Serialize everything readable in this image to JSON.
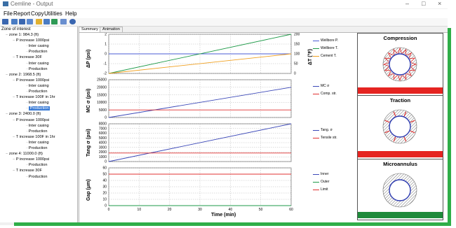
{
  "window": {
    "title": "Cemline - Output",
    "minimize": "–",
    "maximize": "□",
    "close": "×"
  },
  "menu": [
    "File",
    "Report",
    "Copy",
    "Utilities",
    "Help"
  ],
  "toolbar": {
    "icons": [
      "open-file-icon",
      "export-icon",
      "copy-icon",
      "print-icon",
      "grid-icon",
      "table-icon",
      "chart-icon",
      "edit-icon",
      "refresh-icon"
    ]
  },
  "tree": {
    "title": "Zone of interest",
    "nodes": [
      {
        "label": "zone 1: 984.3 (ft)",
        "level": 0
      },
      {
        "label": "P increase 1000psi",
        "level": 1
      },
      {
        "label": "Inter casing",
        "level": 2
      },
      {
        "label": "Production",
        "level": 2
      },
      {
        "label": "T increase 30F",
        "level": 1
      },
      {
        "label": "Inter casing",
        "level": 2
      },
      {
        "label": "Production",
        "level": 2
      },
      {
        "label": "zone 2: 1968.5 (ft)",
        "level": 0
      },
      {
        "label": "P increase 1000psi",
        "level": 1
      },
      {
        "label": "Inter casing",
        "level": 2
      },
      {
        "label": "Production",
        "level": 2
      },
      {
        "label": "T increase 100F in 1hr",
        "level": 1
      },
      {
        "label": "Inter casing",
        "level": 2
      },
      {
        "label": "Production",
        "level": 2,
        "selected": true
      },
      {
        "label": "zone 3: 2400.0 (ft)",
        "level": 0
      },
      {
        "label": "P increase 1000psi",
        "level": 1
      },
      {
        "label": "Inter casing",
        "level": 2
      },
      {
        "label": "Production",
        "level": 2
      },
      {
        "label": "T increase 100F in 1hr",
        "level": 1
      },
      {
        "label": "Inter casing",
        "level": 2
      },
      {
        "label": "Production",
        "level": 2
      },
      {
        "label": "zone 4: 11000.0 (ft)",
        "level": 0
      },
      {
        "label": "P increase 1000psi",
        "level": 1
      },
      {
        "label": "Production",
        "level": 2
      },
      {
        "label": "T increase 30F",
        "level": 1
      },
      {
        "label": "Production",
        "level": 2
      }
    ]
  },
  "tabs": [
    {
      "label": "Summary",
      "active": true
    },
    {
      "label": "Animation",
      "active": false
    }
  ],
  "xlabel": "Time  (min)",
  "chart_data": [
    {
      "type": "line",
      "ylabel": "ΔP  (psi)",
      "y2label": "ΔT  (°F)",
      "x": [
        0,
        60
      ],
      "xlim": [
        0,
        60
      ],
      "xticks": [
        0,
        10,
        20,
        30,
        40,
        50,
        60
      ],
      "ylim": [
        -2,
        2
      ],
      "yticks": [
        -2,
        -1,
        0,
        1,
        2
      ],
      "y2lim": [
        0,
        200
      ],
      "y2ticks": [
        0,
        50,
        100,
        150,
        200
      ],
      "series": [
        {
          "name": "Wellbore P.",
          "color": "#4a5bd6",
          "axis": "left",
          "values": [
            0,
            0
          ]
        },
        {
          "name": "Wellbore T.",
          "color": "#1e9a48",
          "axis": "right",
          "values": [
            0,
            200
          ]
        },
        {
          "name": "Cement T.",
          "color": "#f0a020",
          "axis": "right",
          "values": [
            0,
            100
          ]
        }
      ]
    },
    {
      "type": "line",
      "ylabel": "MC σ  (psi)",
      "x": [
        0,
        60
      ],
      "xlim": [
        0,
        60
      ],
      "xticks": [
        0,
        10,
        20,
        30,
        40,
        50,
        60
      ],
      "ylim": [
        0,
        25000
      ],
      "yticks": [
        0,
        5000,
        10000,
        15000,
        20000,
        25000
      ],
      "series": [
        {
          "name": "MC σ",
          "color": "#3b48b8",
          "values": [
            0,
            20000
          ]
        },
        {
          "name": "Comp. str.",
          "color": "#e03030",
          "values": [
            5000,
            5000
          ]
        }
      ]
    },
    {
      "type": "line",
      "ylabel": "Tang σ  (psi)",
      "x": [
        0,
        60
      ],
      "xlim": [
        0,
        60
      ],
      "xticks": [
        0,
        10,
        20,
        30,
        40,
        50,
        60
      ],
      "ylim": [
        0,
        8000
      ],
      "yticks": [
        0,
        1000,
        2000,
        3000,
        4000,
        5000,
        6000,
        7000,
        8000
      ],
      "series": [
        {
          "name": "Tang. σ",
          "color": "#3b48b8",
          "values": [
            0,
            8000
          ]
        },
        {
          "name": "Tensile str.",
          "color": "#e03030",
          "values": [
            1800,
            1800
          ]
        }
      ]
    },
    {
      "type": "line",
      "ylabel": "Gap  (μm)",
      "x": [
        0,
        60
      ],
      "xlim": [
        0,
        60
      ],
      "xticks": [
        0,
        10,
        20,
        30,
        40,
        50,
        60
      ],
      "ylim": [
        0,
        60
      ],
      "yticks": [
        0,
        10,
        20,
        30,
        40,
        50,
        60
      ],
      "series": [
        {
          "name": "Inner",
          "color": "#3b48b8",
          "values": [
            0,
            0
          ]
        },
        {
          "name": "Outer",
          "color": "#1e9a48",
          "values": [
            0,
            0
          ]
        },
        {
          "name": "Limit",
          "color": "#e03030",
          "values": [
            50,
            50
          ]
        }
      ]
    }
  ],
  "side_panels": [
    {
      "title": "Compression",
      "status_color": "#e52421",
      "cracks": "radial-triangles"
    },
    {
      "title": "Traction",
      "status_color": "#e52421",
      "cracks": "radial-lines"
    },
    {
      "title": "Microannulus",
      "status_color": "#1e8a3a",
      "cracks": "none"
    }
  ]
}
